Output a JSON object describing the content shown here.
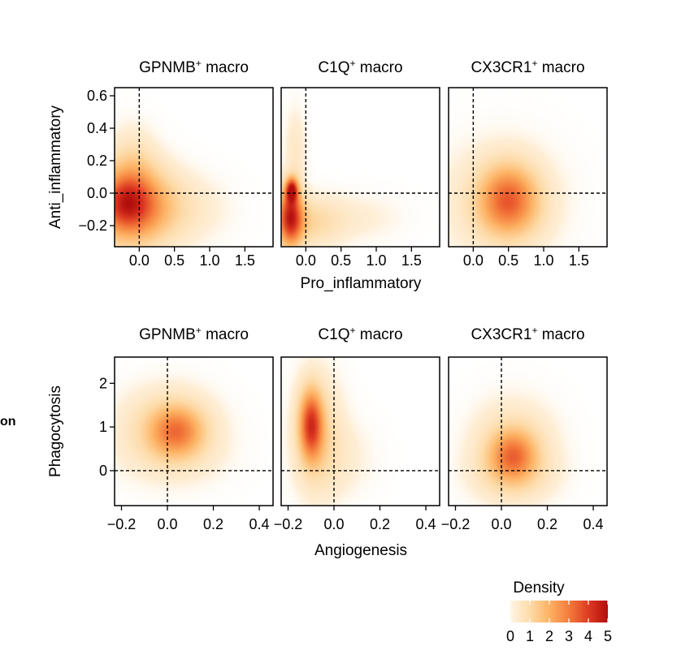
{
  "figure": {
    "side_fragment": "on",
    "legend": {
      "title": "Density",
      "ticks": [
        "0",
        "1",
        "2",
        "3",
        "4",
        "5"
      ],
      "range": [
        0,
        5
      ],
      "colors": [
        "#fff5e6",
        "#fddba8",
        "#fdb263",
        "#f47c3c",
        "#de3b22",
        "#b10d0d"
      ]
    }
  },
  "chart_data": [
    {
      "type": "heatmap",
      "subtype": "2d-density",
      "xlabel": "Pro_inflammatory",
      "ylabel": "Anti_inflammatory",
      "xlim": [
        -0.35,
        1.9
      ],
      "ylim": [
        -0.33,
        0.65
      ],
      "x_ticks": [
        {
          "value": 0.0,
          "label": "0.0"
        },
        {
          "value": 0.5,
          "label": "0.5"
        },
        {
          "value": 1.0,
          "label": "1.0"
        },
        {
          "value": 1.5,
          "label": "1.5"
        }
      ],
      "y_ticks": [
        {
          "value": 0.6,
          "label": "0.6"
        },
        {
          "value": 0.4,
          "label": "0.4"
        },
        {
          "value": 0.2,
          "label": "0.2"
        },
        {
          "value": 0.0,
          "label": "0.0"
        },
        {
          "value": -0.2,
          "label": "−0.2"
        }
      ],
      "reference_lines": {
        "x": 0,
        "y": 0
      },
      "panels": [
        {
          "title_main": "GPNMB",
          "title_sup": "+",
          "title_tail": " macro",
          "blobs": [
            {
              "x": -0.12,
              "y": -0.08,
              "sx": 0.38,
              "sy": 0.16,
              "peak": 3.4
            },
            {
              "x": -0.2,
              "y": -0.06,
              "sx": 0.2,
              "sy": 0.1,
              "peak": 1.2
            },
            {
              "x": -0.1,
              "y": 0.15,
              "sx": 0.22,
              "sy": 0.16,
              "peak": 0.8
            },
            {
              "x": 0.55,
              "y": -0.1,
              "sx": 0.45,
              "sy": 0.14,
              "peak": 0.5
            }
          ]
        },
        {
          "title_main": "C1Q",
          "title_sup": "+",
          "title_tail": " macro",
          "blobs": [
            {
              "x": -0.22,
              "y": -0.15,
              "sx": 0.12,
              "sy": 0.12,
              "peak": 4.2
            },
            {
              "x": -0.2,
              "y": 0.02,
              "sx": 0.06,
              "sy": 0.05,
              "peak": 4.0
            },
            {
              "x": 0.05,
              "y": -0.18,
              "sx": 0.3,
              "sy": 0.1,
              "peak": 1.0
            },
            {
              "x": -0.15,
              "y": 0.25,
              "sx": 0.1,
              "sy": 0.18,
              "peak": 0.5
            },
            {
              "x": 0.7,
              "y": -0.15,
              "sx": 0.45,
              "sy": 0.1,
              "peak": 0.3
            }
          ]
        },
        {
          "title_main": "CX3CR1",
          "title_sup": "+",
          "title_tail": " macro",
          "blobs": [
            {
              "x": 0.5,
              "y": -0.1,
              "sx": 0.3,
              "sy": 0.13,
              "peak": 2.0
            },
            {
              "x": 0.5,
              "y": 0.03,
              "sx": 0.28,
              "sy": 0.13,
              "peak": 1.5
            },
            {
              "x": 0.35,
              "y": -0.05,
              "sx": 0.6,
              "sy": 0.25,
              "peak": 0.5
            }
          ]
        }
      ]
    },
    {
      "type": "heatmap",
      "subtype": "2d-density",
      "xlabel": "Angiogenesis",
      "ylabel": "Phagocytosis",
      "xlim": [
        -0.23,
        0.46
      ],
      "ylim": [
        -0.8,
        2.6
      ],
      "x_ticks": [
        {
          "value": -0.2,
          "label": "−0.2"
        },
        {
          "value": 0.0,
          "label": "0.0"
        },
        {
          "value": 0.2,
          "label": "0.2"
        },
        {
          "value": 0.4,
          "label": "0.4"
        }
      ],
      "y_ticks": [
        {
          "value": 2,
          "label": "2"
        },
        {
          "value": 1,
          "label": "1"
        },
        {
          "value": 0,
          "label": "0"
        }
      ],
      "reference_lines": {
        "x": 0,
        "y": 0
      },
      "panels": [
        {
          "title_main": "GPNMB",
          "title_sup": "+",
          "title_tail": " macro",
          "blobs": [
            {
              "x": 0.04,
              "y": 0.9,
              "sx": 0.08,
              "sy": 0.4,
              "peak": 2.3
            },
            {
              "x": 0.0,
              "y": 1.0,
              "sx": 0.14,
              "sy": 0.6,
              "peak": 0.9
            },
            {
              "x": 0.02,
              "y": 0.35,
              "sx": 0.16,
              "sy": 0.5,
              "peak": 0.3
            }
          ]
        },
        {
          "title_main": "C1Q",
          "title_sup": "+",
          "title_tail": " macro",
          "blobs": [
            {
              "x": -0.1,
              "y": 1.05,
              "sx": 0.035,
              "sy": 0.55,
              "peak": 3.5
            },
            {
              "x": -0.07,
              "y": 0.8,
              "sx": 0.07,
              "sy": 0.9,
              "peak": 1.0
            },
            {
              "x": 0.03,
              "y": 0.3,
              "sx": 0.1,
              "sy": 0.6,
              "peak": 0.3
            }
          ]
        },
        {
          "title_main": "CX3CR1",
          "title_sup": "+",
          "title_tail": " macro",
          "blobs": [
            {
              "x": 0.05,
              "y": 0.35,
              "sx": 0.07,
              "sy": 0.4,
              "peak": 2.3
            },
            {
              "x": 0.05,
              "y": 0.5,
              "sx": 0.12,
              "sy": 0.7,
              "peak": 0.9
            },
            {
              "x": 0.05,
              "y": -0.1,
              "sx": 0.12,
              "sy": 0.4,
              "peak": 0.5
            }
          ]
        }
      ]
    }
  ]
}
